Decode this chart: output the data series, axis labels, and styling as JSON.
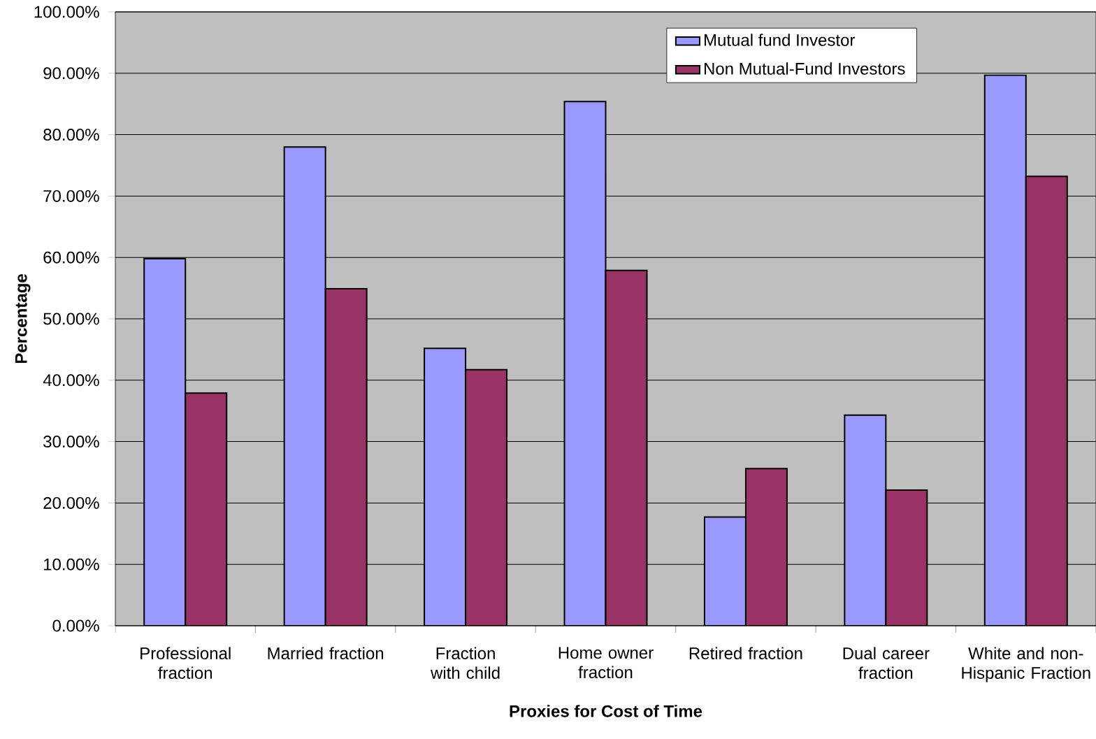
{
  "chart_data": {
    "type": "bar",
    "xlabel": "Proxies for Cost of Time",
    "ylabel": "Percentage",
    "categories": [
      "Professional fraction",
      "Married fraction",
      "Fraction with child",
      "Home owner fraction",
      "Retired fraction",
      "Dual career fraction",
      "White and non-Hispanic Fraction"
    ],
    "series": [
      {
        "name": "Mutual fund Investor",
        "color": "#9999ff",
        "values": [
          59.8,
          78.0,
          45.2,
          85.4,
          17.7,
          34.3,
          89.7
        ]
      },
      {
        "name": "Non Mutual-Fund Investors",
        "color": "#993366",
        "values": [
          37.9,
          54.9,
          41.7,
          57.9,
          25.6,
          22.1,
          73.2
        ]
      }
    ],
    "ylim": [
      0,
      100
    ],
    "yticks": [
      {
        "value": 0,
        "label": "0.00%"
      },
      {
        "value": 10,
        "label": "10.00%"
      },
      {
        "value": 20,
        "label": "20.00%"
      },
      {
        "value": 30,
        "label": "30.00%"
      },
      {
        "value": 40,
        "label": "40.00%"
      },
      {
        "value": 50,
        "label": "50.00%"
      },
      {
        "value": 60,
        "label": "60.00%"
      },
      {
        "value": 70,
        "label": "70.00%"
      },
      {
        "value": 80,
        "label": "80.00%"
      },
      {
        "value": 90,
        "label": "90.00%"
      },
      {
        "value": 100,
        "label": "100.00%"
      }
    ],
    "grid": "y",
    "legend": "top right"
  }
}
